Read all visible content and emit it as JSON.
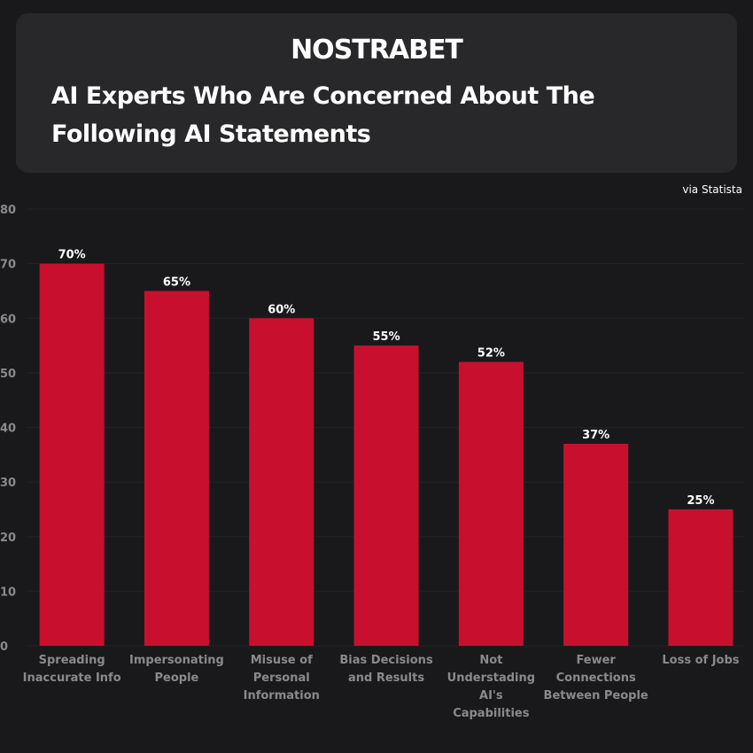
{
  "brand": {
    "logo_text": "NOSTRABET"
  },
  "source_text": "via Statista",
  "colors": {
    "bar": "#c8102e",
    "background": "#19191b",
    "card": "#28282b",
    "axis_text": "#8a8a8a"
  },
  "chart_data": {
    "type": "bar",
    "title": "AI Experts Who Are Concerned About The Following AI Statements",
    "categories": [
      [
        "Spreading",
        "Inaccurate Info"
      ],
      [
        "Impersonating",
        "People"
      ],
      [
        "Misuse of",
        "Personal",
        "Information"
      ],
      [
        "Bias Decisions",
        "and Results"
      ],
      [
        "Not",
        "Understading",
        "AI's",
        "Capabilities"
      ],
      [
        "Fewer",
        "Connections",
        "Between People"
      ],
      [
        "Loss of Jobs"
      ]
    ],
    "values": [
      70,
      65,
      60,
      55,
      52,
      37,
      25
    ],
    "value_labels": [
      "70%",
      "65%",
      "60%",
      "55%",
      "52%",
      "37%",
      "25%"
    ],
    "yticks": [
      "0",
      "10",
      "20",
      "30",
      "40",
      "50",
      "60",
      "70",
      "80"
    ],
    "ylim": [
      0,
      80
    ],
    "xlabel": "",
    "ylabel": "",
    "grid": true,
    "legend": "none"
  }
}
